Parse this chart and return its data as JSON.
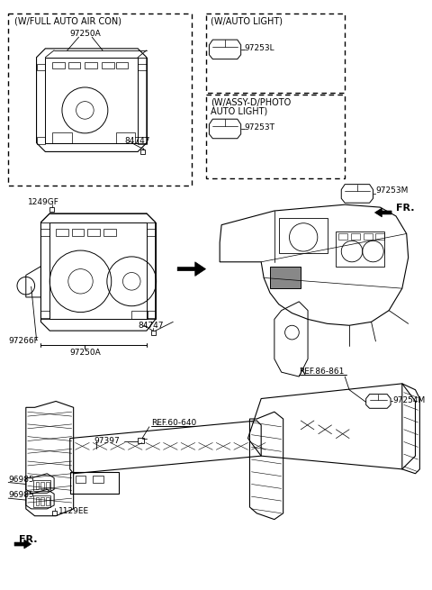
{
  "background_color": "#ffffff",
  "labels": {
    "w_full_auto": "(W/FULL AUTO AIR CON)",
    "w_auto_light": "(W/AUTO LIGHT)",
    "w_assy_line1": "(W/ASSY-D/PHOTO",
    "w_assy_line2": "AUTO LIGHT)",
    "part_97250A_top": "97250A",
    "part_84747_top": "84747",
    "part_97253L": "97253L",
    "part_97253T": "97253T",
    "part_97253M": "97253M",
    "part_FR_top": "FR.",
    "part_1249GF": "1249GF",
    "part_97266F": "97266F",
    "part_84747_mid": "84747",
    "part_97250A_mid": "97250A",
    "part_ref86": "REF.86-861",
    "part_97254M": "97254M",
    "part_ref60": "REF.60-640",
    "part_97397": "97397",
    "part_96985_top": "96985",
    "part_96985_bot": "96985",
    "part_FR_bot": "FR.",
    "part_1129EE": "1129EE"
  }
}
